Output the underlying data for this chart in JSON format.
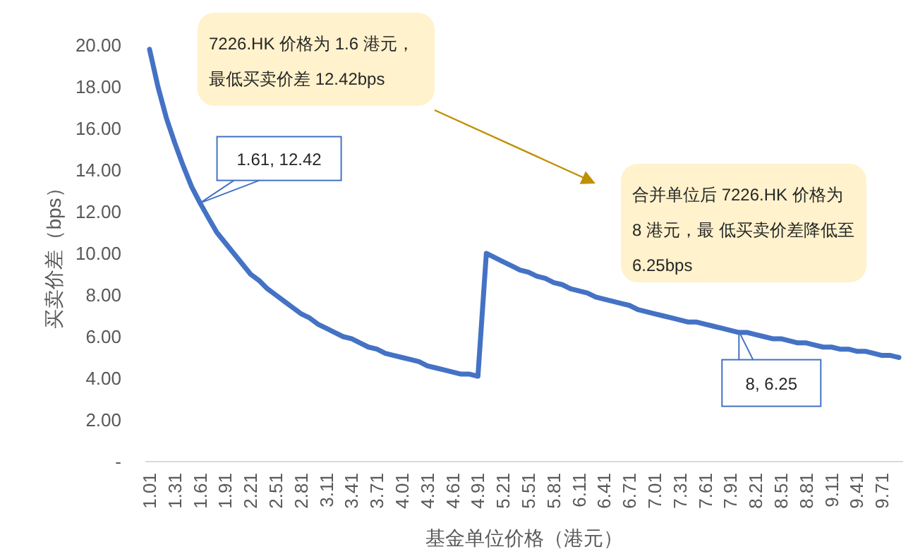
{
  "chart_data": {
    "type": "line",
    "xlabel": "基金单位价格（港元）",
    "ylabel": "买卖价差（bps）",
    "categories": [
      "1.01",
      null,
      null,
      "1.31",
      null,
      null,
      "1.61",
      null,
      null,
      "1.91",
      null,
      null,
      "2.21",
      null,
      null,
      "2.51",
      null,
      null,
      "2.81",
      null,
      null,
      "3.11",
      null,
      null,
      "3.41",
      null,
      null,
      "3.71",
      null,
      null,
      "4.01",
      null,
      null,
      "4.31",
      null,
      null,
      "4.61",
      null,
      null,
      "4.91",
      null,
      null,
      "5.21",
      null,
      null,
      "5.51",
      null,
      null,
      "5.81",
      null,
      null,
      "6.11",
      null,
      null,
      "6.41",
      null,
      null,
      "6.71",
      null,
      null,
      "7.01",
      null,
      null,
      "7.31",
      null,
      null,
      "7.61",
      null,
      null,
      "7.91",
      null,
      null,
      "8.21",
      null,
      null,
      "8.51",
      null,
      null,
      "8.81",
      null,
      null,
      "9.11",
      null,
      null,
      "9.41",
      null,
      null,
      "9.71",
      null,
      null
    ],
    "series": [
      {
        "color": "#4472c4",
        "values": [
          19.8,
          18.0,
          16.5,
          15.3,
          14.2,
          13.2,
          12.42,
          11.7,
          11.0,
          10.5,
          10.0,
          9.5,
          9.0,
          8.7,
          8.3,
          8.0,
          7.7,
          7.4,
          7.1,
          6.9,
          6.6,
          6.4,
          6.2,
          6.0,
          5.9,
          5.7,
          5.5,
          5.4,
          5.2,
          5.1,
          5.0,
          4.9,
          4.8,
          4.6,
          4.5,
          4.4,
          4.3,
          4.2,
          4.2,
          4.1,
          10.0,
          9.8,
          9.6,
          9.4,
          9.2,
          9.1,
          8.9,
          8.8,
          8.6,
          8.5,
          8.3,
          8.2,
          8.1,
          7.9,
          7.8,
          7.7,
          7.6,
          7.5,
          7.3,
          7.2,
          7.1,
          7.0,
          6.9,
          6.8,
          6.7,
          6.7,
          6.6,
          6.5,
          6.4,
          6.3,
          6.2,
          6.2,
          6.1,
          6.0,
          5.9,
          5.9,
          5.8,
          5.7,
          5.7,
          5.6,
          5.5,
          5.5,
          5.4,
          5.4,
          5.3,
          5.3,
          5.2,
          5.1,
          5.1,
          5.0
        ]
      }
    ],
    "ylim": [
      0,
      20
    ],
    "yticks": [
      {
        "value": 0,
        "label": "-"
      },
      {
        "value": 2,
        "label": "2.00"
      },
      {
        "value": 4,
        "label": "4.00"
      },
      {
        "value": 6,
        "label": "6.00"
      },
      {
        "value": 8,
        "label": "8.00"
      },
      {
        "value": 10,
        "label": "10.00"
      },
      {
        "value": 12,
        "label": "12.00"
      },
      {
        "value": 14,
        "label": "14.00"
      },
      {
        "value": 16,
        "label": "16.00"
      },
      {
        "value": 18,
        "label": "18.00"
      },
      {
        "value": 20,
        "label": "20.00"
      }
    ],
    "marker": "none",
    "line_style": "solid",
    "annotations": [
      "7226.HK 价格为 1.6 港元，最低买卖价差 12.42bps",
      "合并单位后 7226.HK 价格为 8 港元，最 低买卖价差降低至 6.25bps",
      {
        "text": "1.61, 12.42",
        "x": "1.61",
        "y": 12.42
      },
      {
        "text": "8, 6.25",
        "y": 6.25
      }
    ]
  }
}
